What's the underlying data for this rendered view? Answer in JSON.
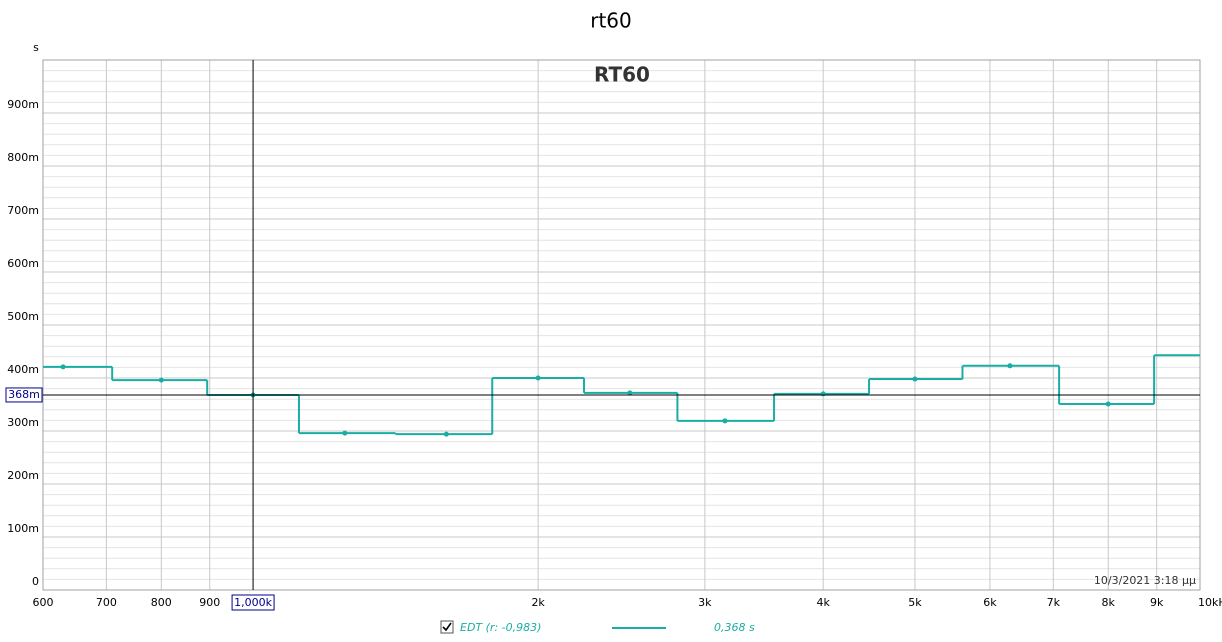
{
  "chart_data": {
    "type": "step",
    "title": "rt60",
    "subtitle": "RT60",
    "y_unit": "s",
    "xscale": "log",
    "color": "#1aada5",
    "grid": true,
    "x": [
      630,
      800,
      1000,
      1250,
      1600,
      2000,
      2500,
      3150,
      4000,
      5000,
      6300,
      8000,
      10000
    ],
    "series": [
      {
        "name": "EDT (r: -0,983)",
        "color": "#1aada5",
        "values": [
          0.421,
          0.396,
          0.368,
          0.296,
          0.294,
          0.4,
          0.372,
          0.319,
          0.37,
          0.398,
          0.423,
          0.351,
          0.443
        ]
      }
    ],
    "xlim": [
      600,
      10000
    ],
    "xticks": [
      600,
      700,
      800,
      900,
      {
        "value": 2000,
        "label": "2k"
      },
      {
        "value": 3000,
        "label": "3k"
      },
      {
        "value": 4000,
        "label": "4k"
      },
      {
        "value": 5000,
        "label": "5k"
      },
      {
        "value": 6000,
        "label": "6k"
      },
      {
        "value": 7000,
        "label": "7k"
      },
      {
        "value": 8000,
        "label": "8k"
      },
      {
        "value": 9000,
        "label": "9k"
      },
      {
        "value": 10000,
        "label": "10kHz"
      }
    ],
    "ylim": [
      0,
      1
    ],
    "yticks": [
      0,
      {
        "value": 0.1,
        "label": "100m"
      },
      {
        "value": 0.2,
        "label": "200m"
      },
      {
        "value": 0.3,
        "label": "300m"
      },
      {
        "value": 0.4,
        "label": "400m"
      },
      {
        "value": 0.5,
        "label": "500m"
      },
      {
        "value": 0.6,
        "label": "600m"
      },
      {
        "value": 0.7,
        "label": "700m"
      },
      {
        "value": 0.8,
        "label": "800m"
      },
      {
        "value": 0.9,
        "label": "900m"
      }
    ],
    "cursor": {
      "x": {
        "value": 1000,
        "label": "1,000k"
      },
      "y": {
        "value": 0.368,
        "label": "368m"
      }
    },
    "legend_value": "0,368 s",
    "timestamp": "10/3/2021 3:18 μμ"
  }
}
